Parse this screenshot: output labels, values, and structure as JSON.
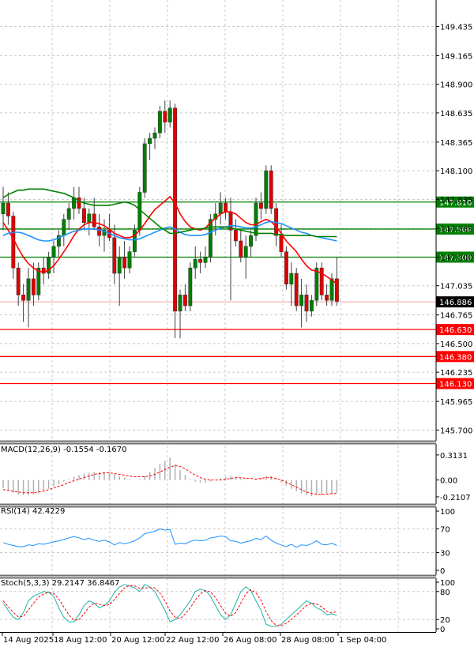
{
  "chart_data": [
    {
      "type": "candlestick",
      "panel": "price",
      "y_ticks": [
        "149.435",
        "149.165",
        "148.900",
        "148.635",
        "148.365",
        "148.100",
        "147.835",
        "147.565",
        "147.300",
        "147.035",
        "146.765",
        "146.500",
        "146.235",
        "145.965",
        "145.700"
      ],
      "ylim": [
        145.6,
        149.68
      ],
      "grid": true,
      "candles": [
        {
          "o": 147.7,
          "h": 147.95,
          "l": 147.55,
          "c": 147.8
        },
        {
          "o": 147.8,
          "h": 147.9,
          "l": 147.6,
          "c": 147.68
        },
        {
          "o": 147.68,
          "h": 147.72,
          "l": 147.1,
          "c": 147.2
        },
        {
          "o": 147.2,
          "h": 147.25,
          "l": 146.85,
          "c": 146.95
        },
        {
          "o": 146.95,
          "h": 147.05,
          "l": 146.7,
          "c": 146.9
        },
        {
          "o": 146.9,
          "h": 147.2,
          "l": 146.65,
          "c": 147.1
        },
        {
          "o": 147.1,
          "h": 147.25,
          "l": 146.85,
          "c": 146.95
        },
        {
          "o": 146.95,
          "h": 147.25,
          "l": 146.9,
          "c": 147.2
        },
        {
          "o": 147.2,
          "h": 147.3,
          "l": 147.05,
          "c": 147.15
        },
        {
          "o": 147.15,
          "h": 147.35,
          "l": 147.1,
          "c": 147.3
        },
        {
          "o": 147.3,
          "h": 147.45,
          "l": 147.15,
          "c": 147.4
        },
        {
          "o": 147.4,
          "h": 147.55,
          "l": 147.3,
          "c": 147.5
        },
        {
          "o": 147.5,
          "h": 147.7,
          "l": 147.4,
          "c": 147.65
        },
        {
          "o": 147.65,
          "h": 147.8,
          "l": 147.55,
          "c": 147.75
        },
        {
          "o": 147.75,
          "h": 147.95,
          "l": 147.65,
          "c": 147.85
        },
        {
          "o": 147.85,
          "h": 147.95,
          "l": 147.7,
          "c": 147.75
        },
        {
          "o": 147.75,
          "h": 147.85,
          "l": 147.55,
          "c": 147.62
        },
        {
          "o": 147.62,
          "h": 147.75,
          "l": 147.5,
          "c": 147.7
        },
        {
          "o": 147.7,
          "h": 147.85,
          "l": 147.55,
          "c": 147.58
        },
        {
          "o": 147.58,
          "h": 147.7,
          "l": 147.4,
          "c": 147.5
        },
        {
          "o": 147.5,
          "h": 147.65,
          "l": 147.35,
          "c": 147.55
        },
        {
          "o": 147.55,
          "h": 147.7,
          "l": 147.45,
          "c": 147.48
        },
        {
          "o": 147.48,
          "h": 147.6,
          "l": 147.05,
          "c": 147.15
        },
        {
          "o": 147.15,
          "h": 147.4,
          "l": 146.85,
          "c": 147.3
        },
        {
          "o": 147.3,
          "h": 147.45,
          "l": 147.1,
          "c": 147.2
        },
        {
          "o": 147.2,
          "h": 147.4,
          "l": 147.15,
          "c": 147.35
        },
        {
          "o": 147.35,
          "h": 147.6,
          "l": 147.3,
          "c": 147.55
        },
        {
          "o": 147.55,
          "h": 147.95,
          "l": 147.5,
          "c": 147.9
        },
        {
          "o": 147.9,
          "h": 148.4,
          "l": 147.85,
          "c": 148.35
        },
        {
          "o": 148.35,
          "h": 148.45,
          "l": 148.2,
          "c": 148.4
        },
        {
          "o": 148.4,
          "h": 148.5,
          "l": 148.3,
          "c": 148.45
        },
        {
          "o": 148.45,
          "h": 148.7,
          "l": 148.4,
          "c": 148.65
        },
        {
          "o": 148.65,
          "h": 148.75,
          "l": 148.45,
          "c": 148.55
        },
        {
          "o": 148.55,
          "h": 148.75,
          "l": 148.5,
          "c": 148.68
        },
        {
          "o": 148.68,
          "h": 148.72,
          "l": 146.55,
          "c": 146.8
        },
        {
          "o": 146.8,
          "h": 147.0,
          "l": 146.55,
          "c": 146.95
        },
        {
          "o": 146.95,
          "h": 147.05,
          "l": 146.8,
          "c": 146.85
        },
        {
          "o": 146.85,
          "h": 147.25,
          "l": 146.8,
          "c": 147.2
        },
        {
          "o": 147.2,
          "h": 147.4,
          "l": 147.1,
          "c": 147.28
        },
        {
          "o": 147.28,
          "h": 147.35,
          "l": 147.15,
          "c": 147.25
        },
        {
          "o": 147.25,
          "h": 147.4,
          "l": 147.2,
          "c": 147.3
        },
        {
          "o": 147.3,
          "h": 147.7,
          "l": 147.25,
          "c": 147.65
        },
        {
          "o": 147.65,
          "h": 147.8,
          "l": 147.5,
          "c": 147.7
        },
        {
          "o": 147.7,
          "h": 147.9,
          "l": 147.6,
          "c": 147.8
        },
        {
          "o": 147.8,
          "h": 147.85,
          "l": 147.65,
          "c": 147.72
        },
        {
          "o": 147.72,
          "h": 147.85,
          "l": 146.9,
          "c": 147.55
        },
        {
          "o": 147.55,
          "h": 147.65,
          "l": 147.4,
          "c": 147.45
        },
        {
          "o": 147.45,
          "h": 147.55,
          "l": 147.25,
          "c": 147.3
        },
        {
          "o": 147.3,
          "h": 147.5,
          "l": 147.1,
          "c": 147.4
        },
        {
          "o": 147.4,
          "h": 147.55,
          "l": 147.3,
          "c": 147.5
        },
        {
          "o": 147.5,
          "h": 147.85,
          "l": 147.45,
          "c": 147.8
        },
        {
          "o": 147.8,
          "h": 147.9,
          "l": 147.65,
          "c": 147.75
        },
        {
          "o": 147.75,
          "h": 148.15,
          "l": 147.7,
          "c": 148.1
        },
        {
          "o": 148.1,
          "h": 148.15,
          "l": 147.7,
          "c": 147.75
        },
        {
          "o": 147.75,
          "h": 147.8,
          "l": 147.4,
          "c": 147.5
        },
        {
          "o": 147.5,
          "h": 147.6,
          "l": 147.3,
          "c": 147.35
        },
        {
          "o": 147.35,
          "h": 147.4,
          "l": 147.0,
          "c": 147.05
        },
        {
          "o": 147.05,
          "h": 147.25,
          "l": 146.85,
          "c": 147.15
        },
        {
          "o": 147.15,
          "h": 147.2,
          "l": 146.8,
          "c": 146.85
        },
        {
          "o": 146.85,
          "h": 147.1,
          "l": 146.65,
          "c": 146.95
        },
        {
          "o": 146.95,
          "h": 147.05,
          "l": 146.7,
          "c": 146.8
        },
        {
          "o": 146.8,
          "h": 146.95,
          "l": 146.75,
          "c": 146.9
        },
        {
          "o": 146.9,
          "h": 147.25,
          "l": 146.85,
          "c": 147.2
        },
        {
          "o": 147.2,
          "h": 147.25,
          "l": 146.9,
          "c": 146.95
        },
        {
          "o": 146.95,
          "h": 147.05,
          "l": 146.85,
          "c": 146.9
        },
        {
          "o": 146.9,
          "h": 147.15,
          "l": 146.85,
          "c": 147.1
        },
        {
          "o": 147.1,
          "h": 147.3,
          "l": 146.85,
          "c": 146.89
        }
      ],
      "moving_averages": [
        {
          "color": "#ff0000",
          "values": [
            147.62,
            147.55,
            147.47,
            147.38,
            147.3,
            147.24,
            147.2,
            147.17,
            147.16,
            147.18,
            147.22,
            147.28,
            147.35,
            147.42,
            147.5,
            147.56,
            147.6,
            147.62,
            147.62,
            147.61,
            147.59,
            147.56,
            147.52,
            147.5,
            147.48,
            147.48,
            147.5,
            147.55,
            147.61,
            147.68,
            147.74,
            147.78,
            147.82,
            147.86,
            147.8,
            147.7,
            147.63,
            147.58,
            147.56,
            147.55,
            147.57,
            147.62,
            147.66,
            147.7,
            147.72,
            147.72,
            147.7,
            147.66,
            147.62,
            147.6,
            147.6,
            147.63,
            147.65,
            147.63,
            147.58,
            147.52,
            147.45,
            147.4,
            147.35,
            147.28,
            147.22,
            147.18,
            147.17,
            147.15,
            147.12,
            147.09,
            147.05
          ]
        },
        {
          "color": "#1e90ff",
          "values": [
            147.5,
            147.52,
            147.53,
            147.53,
            147.52,
            147.5,
            147.48,
            147.46,
            147.45,
            147.45,
            147.46,
            147.48,
            147.5,
            147.52,
            147.54,
            147.55,
            147.56,
            147.56,
            147.56,
            147.55,
            147.54,
            147.52,
            147.5,
            147.48,
            147.47,
            147.46,
            147.46,
            147.47,
            147.49,
            147.51,
            147.53,
            147.55,
            147.57,
            147.58,
            147.56,
            147.53,
            147.51,
            147.5,
            147.5,
            147.5,
            147.51,
            147.53,
            147.55,
            147.57,
            147.58,
            147.59,
            147.59,
            147.58,
            147.57,
            147.57,
            147.58,
            147.6,
            147.62,
            147.63,
            147.62,
            147.61,
            147.59,
            147.57,
            147.55,
            147.53,
            147.52,
            147.5,
            147.49,
            147.48,
            147.47,
            147.46,
            147.45
          ]
        },
        {
          "color": "#008000",
          "values": [
            147.85,
            147.88,
            147.9,
            147.92,
            147.92,
            147.93,
            147.93,
            147.93,
            147.93,
            147.92,
            147.91,
            147.9,
            147.89,
            147.87,
            147.85,
            147.82,
            147.8,
            147.79,
            147.78,
            147.78,
            147.78,
            147.78,
            147.79,
            147.8,
            147.81,
            147.8,
            147.78,
            147.74,
            147.7,
            147.66,
            147.62,
            147.58,
            147.55,
            147.52,
            147.52,
            147.53,
            147.54,
            147.55,
            147.56,
            147.56,
            147.57,
            147.58,
            147.58,
            147.58,
            147.58,
            147.57,
            147.56,
            147.55,
            147.54,
            147.53,
            147.52,
            147.52,
            147.52,
            147.52,
            147.51,
            147.51,
            147.5,
            147.5,
            147.5,
            147.5,
            147.5,
            147.5,
            147.49,
            147.49,
            147.49,
            147.49,
            147.49
          ]
        }
      ],
      "levels": [
        {
          "label": "147.810",
          "value": 147.81,
          "color": "#008000"
        },
        {
          "label": "147.560",
          "value": 147.56,
          "color": "#008000"
        },
        {
          "label": "147.300",
          "value": 147.3,
          "color": "#008000"
        },
        {
          "label": "146.630",
          "value": 146.63,
          "color": "#ff0000"
        },
        {
          "label": "146.380",
          "value": 146.38,
          "color": "#ff0000"
        },
        {
          "label": "146.130",
          "value": 146.13,
          "color": "#ff0000"
        }
      ],
      "current_price": {
        "label": "146.886",
        "value": 146.886
      }
    },
    {
      "type": "histogram",
      "panel": "macd",
      "title": "MACD(12,26,9) -0.1554 -0.1670",
      "y_ticks": [
        "0.3131",
        "0.00",
        "-0.2107"
      ],
      "ylim": [
        -0.3,
        0.45
      ],
      "histogram": [
        -0.1,
        -0.13,
        -0.16,
        -0.18,
        -0.19,
        -0.19,
        -0.18,
        -0.16,
        -0.14,
        -0.11,
        -0.08,
        -0.05,
        -0.02,
        0.01,
        0.04,
        0.06,
        0.08,
        0.09,
        0.1,
        0.1,
        0.1,
        0.09,
        0.07,
        0.05,
        0.03,
        0.01,
        0.0,
        0.01,
        0.05,
        0.1,
        0.15,
        0.2,
        0.24,
        0.28,
        0.2,
        0.12,
        0.06,
        0.01,
        -0.02,
        -0.03,
        -0.03,
        -0.02,
        0.0,
        0.02,
        0.04,
        0.05,
        0.04,
        0.02,
        0.01,
        0.0,
        0.01,
        0.03,
        0.05,
        0.05,
        0.02,
        -0.03,
        -0.07,
        -0.11,
        -0.14,
        -0.17,
        -0.19,
        -0.2,
        -0.19,
        -0.19,
        -0.18,
        -0.17,
        -0.16
      ],
      "signal": [
        -0.12,
        -0.13,
        -0.14,
        -0.15,
        -0.16,
        -0.16,
        -0.16,
        -0.15,
        -0.14,
        -0.12,
        -0.1,
        -0.08,
        -0.06,
        -0.03,
        -0.01,
        0.01,
        0.03,
        0.05,
        0.07,
        0.08,
        0.09,
        0.09,
        0.08,
        0.07,
        0.06,
        0.05,
        0.04,
        0.04,
        0.04,
        0.05,
        0.07,
        0.1,
        0.13,
        0.16,
        0.18,
        0.17,
        0.14,
        0.1,
        0.06,
        0.03,
        0.01,
        0.0,
        0.0,
        0.0,
        0.01,
        0.02,
        0.03,
        0.03,
        0.02,
        0.02,
        0.01,
        0.02,
        0.03,
        0.03,
        0.02,
        0.0,
        -0.03,
        -0.06,
        -0.09,
        -0.12,
        -0.15,
        -0.17,
        -0.18,
        -0.18,
        -0.18,
        -0.17,
        -0.17
      ]
    },
    {
      "type": "line",
      "panel": "rsi",
      "title": "RSI(14) 42.4229",
      "y_ticks": [
        "100",
        "70",
        "30",
        "0"
      ],
      "ylim": [
        0,
        100
      ],
      "values": [
        47,
        44,
        42,
        40,
        40,
        43,
        42,
        45,
        44,
        46,
        48,
        50,
        52,
        55,
        57,
        55,
        52,
        54,
        51,
        49,
        51,
        48,
        43,
        47,
        45,
        47,
        50,
        55,
        62,
        64,
        66,
        70,
        68,
        69,
        44,
        46,
        45,
        49,
        51,
        50,
        51,
        55,
        56,
        58,
        57,
        50,
        49,
        46,
        48,
        50,
        54,
        52,
        58,
        51,
        46,
        43,
        40,
        44,
        39,
        43,
        42,
        45,
        50,
        44,
        43,
        46,
        42
      ]
    },
    {
      "type": "line",
      "panel": "stochastic",
      "title": "Stoch(5,3,3) 29.2147 36.8467",
      "y_ticks": [
        "100",
        "80",
        "20",
        "0"
      ],
      "ylim": [
        0,
        100
      ],
      "k": [
        55,
        40,
        25,
        20,
        35,
        60,
        70,
        75,
        80,
        78,
        70,
        45,
        25,
        15,
        15,
        30,
        50,
        60,
        55,
        45,
        50,
        60,
        78,
        90,
        95,
        92,
        88,
        80,
        95,
        90,
        80,
        60,
        40,
        15,
        20,
        30,
        45,
        60,
        80,
        85,
        82,
        70,
        50,
        30,
        20,
        30,
        55,
        80,
        90,
        82,
        60,
        40,
        10,
        5,
        5,
        10,
        20,
        30,
        40,
        50,
        60,
        55,
        45,
        40,
        30,
        32,
        29
      ],
      "d": [
        60,
        48,
        35,
        26,
        27,
        40,
        55,
        68,
        75,
        78,
        76,
        64,
        47,
        30,
        18,
        20,
        32,
        47,
        55,
        53,
        50,
        52,
        63,
        76,
        88,
        93,
        92,
        87,
        88,
        88,
        88,
        77,
        60,
        38,
        25,
        22,
        32,
        45,
        62,
        75,
        82,
        79,
        67,
        50,
        33,
        27,
        35,
        55,
        75,
        84,
        77,
        61,
        37,
        18,
        7,
        7,
        12,
        20,
        30,
        40,
        50,
        55,
        53,
        47,
        38,
        34,
        37
      ]
    }
  ],
  "x_axis": {
    "labels": [
      "14 Aug 2025",
      "18 Aug 12:00",
      "20 Aug 12:00",
      "22 Aug 12:00",
      "26 Aug 08:00",
      "28 Aug 08:00",
      "1 Sep 04:00"
    ]
  }
}
